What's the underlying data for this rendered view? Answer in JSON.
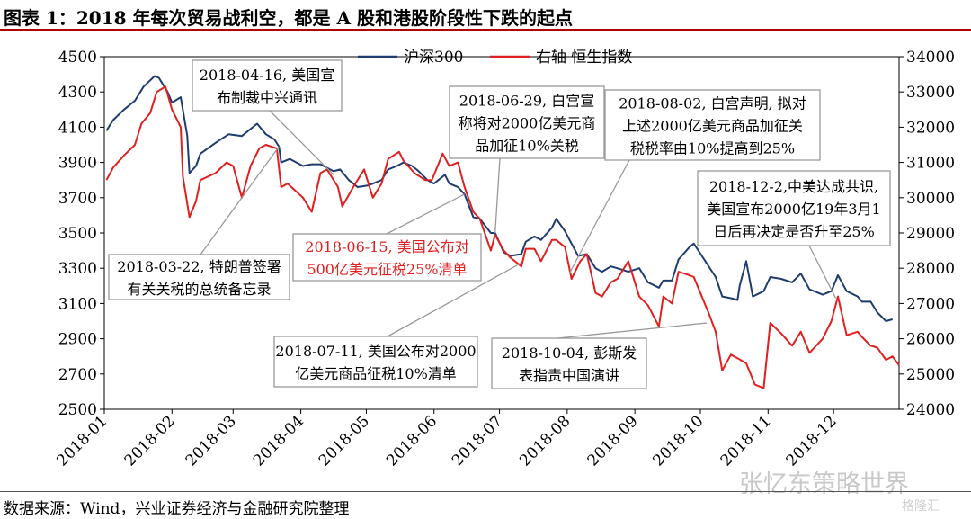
{
  "title": "图表 1：2018 年每次贸易战利空，都是 A 股和港股阶段性下跌的起点",
  "source": "数据来源：Wind，兴业证券经济与金融研究院整理",
  "watermark": "张忆东策略世界",
  "watermark2": "格隆汇",
  "colors": {
    "csi300": "#1f3c6e",
    "hsi": "#e02020",
    "title_rule": "#b00000",
    "callout_border": "#999999"
  },
  "chart_data": {
    "type": "line",
    "x_ticks": [
      "2018-01",
      "2018-02",
      "2018-03",
      "2018-04",
      "2018-05",
      "2018-06",
      "2018-07",
      "2018-08",
      "2018-09",
      "2018-10",
      "2018-11",
      "2018-12"
    ],
    "y_left": {
      "ticks": [
        "4500",
        "4300",
        "4100",
        "3900",
        "3700",
        "3500",
        "3300",
        "3100",
        "2900",
        "2700",
        "2500"
      ],
      "range": [
        2500,
        4500
      ]
    },
    "y_right": {
      "ticks": [
        "34000",
        "33000",
        "32000",
        "31000",
        "30000",
        "29000",
        "28000",
        "27000",
        "26000",
        "25000",
        "24000"
      ],
      "range": [
        24000,
        34000
      ]
    },
    "legend": [
      {
        "name": "沪深300",
        "series": "csi300"
      },
      {
        "name": "右轴 恒生指数",
        "series": "hsi"
      }
    ],
    "series": [
      {
        "name": "沪深300",
        "axis": "left",
        "color": "#1f3c6e",
        "points": [
          [
            "2018-01-02",
            4080
          ],
          [
            "2018-01-05",
            4140
          ],
          [
            "2018-01-10",
            4200
          ],
          [
            "2018-01-15",
            4250
          ],
          [
            "2018-01-19",
            4330
          ],
          [
            "2018-01-24",
            4390
          ],
          [
            "2018-01-26",
            4380
          ],
          [
            "2018-01-30",
            4300
          ],
          [
            "2018-02-01",
            4240
          ],
          [
            "2018-02-05",
            4270
          ],
          [
            "2018-02-08",
            4050
          ],
          [
            "2018-02-09",
            3840
          ],
          [
            "2018-02-12",
            3880
          ],
          [
            "2018-02-14",
            3950
          ],
          [
            "2018-02-22",
            4020
          ],
          [
            "2018-02-27",
            4060
          ],
          [
            "2018-03-05",
            4050
          ],
          [
            "2018-03-12",
            4120
          ],
          [
            "2018-03-16",
            4060
          ],
          [
            "2018-03-20",
            4030
          ],
          [
            "2018-03-22",
            3990
          ],
          [
            "2018-03-23",
            3900
          ],
          [
            "2018-03-27",
            3920
          ],
          [
            "2018-04-02",
            3880
          ],
          [
            "2018-04-06",
            3890
          ],
          [
            "2018-04-10",
            3890
          ],
          [
            "2018-04-16",
            3850
          ],
          [
            "2018-04-19",
            3860
          ],
          [
            "2018-04-23",
            3800
          ],
          [
            "2018-04-27",
            3760
          ],
          [
            "2018-05-02",
            3770
          ],
          [
            "2018-05-08",
            3800
          ],
          [
            "2018-05-11",
            3860
          ],
          [
            "2018-05-15",
            3880
          ],
          [
            "2018-05-18",
            3900
          ],
          [
            "2018-05-22",
            3880
          ],
          [
            "2018-05-25",
            3850
          ],
          [
            "2018-05-29",
            3800
          ],
          [
            "2018-06-01",
            3780
          ],
          [
            "2018-06-06",
            3830
          ],
          [
            "2018-06-08",
            3780
          ],
          [
            "2018-06-12",
            3760
          ],
          [
            "2018-06-15",
            3720
          ],
          [
            "2018-06-19",
            3590
          ],
          [
            "2018-06-22",
            3580
          ],
          [
            "2018-06-27",
            3500
          ],
          [
            "2018-06-29",
            3500
          ],
          [
            "2018-07-03",
            3390
          ],
          [
            "2018-07-06",
            3370
          ],
          [
            "2018-07-11",
            3380
          ],
          [
            "2018-07-13",
            3450
          ],
          [
            "2018-07-17",
            3480
          ],
          [
            "2018-07-20",
            3460
          ],
          [
            "2018-07-25",
            3530
          ],
          [
            "2018-07-27",
            3580
          ],
          [
            "2018-07-31",
            3510
          ],
          [
            "2018-08-03",
            3440
          ],
          [
            "2018-08-06",
            3370
          ],
          [
            "2018-08-10",
            3380
          ],
          [
            "2018-08-14",
            3300
          ],
          [
            "2018-08-17",
            3280
          ],
          [
            "2018-08-21",
            3310
          ],
          [
            "2018-08-24",
            3300
          ],
          [
            "2018-08-29",
            3280
          ],
          [
            "2018-09-03",
            3300
          ],
          [
            "2018-09-07",
            3220
          ],
          [
            "2018-09-12",
            3190
          ],
          [
            "2018-09-14",
            3230
          ],
          [
            "2018-09-18",
            3230
          ],
          [
            "2018-09-21",
            3350
          ],
          [
            "2018-09-26",
            3420
          ],
          [
            "2018-09-28",
            3440
          ],
          [
            "2018-10-08",
            3250
          ],
          [
            "2018-10-11",
            3140
          ],
          [
            "2018-10-15",
            3130
          ],
          [
            "2018-10-18",
            3120
          ],
          [
            "2018-10-19",
            3200
          ],
          [
            "2018-10-22",
            3340
          ],
          [
            "2018-10-25",
            3140
          ],
          [
            "2018-10-30",
            3170
          ],
          [
            "2018-11-02",
            3250
          ],
          [
            "2018-11-07",
            3240
          ],
          [
            "2018-11-12",
            3220
          ],
          [
            "2018-11-16",
            3270
          ],
          [
            "2018-11-20",
            3180
          ],
          [
            "2018-11-26",
            3150
          ],
          [
            "2018-11-30",
            3170
          ],
          [
            "2018-12-03",
            3260
          ],
          [
            "2018-12-07",
            3170
          ],
          [
            "2018-12-12",
            3140
          ],
          [
            "2018-12-14",
            3110
          ],
          [
            "2018-12-18",
            3110
          ],
          [
            "2018-12-21",
            3050
          ],
          [
            "2018-12-25",
            3000
          ],
          [
            "2018-12-28",
            3010
          ]
        ]
      },
      {
        "name": "右轴 恒生指数",
        "axis": "right",
        "color": "#e02020",
        "points": [
          [
            "2018-01-02",
            30500
          ],
          [
            "2018-01-05",
            30850
          ],
          [
            "2018-01-10",
            31200
          ],
          [
            "2018-01-15",
            31500
          ],
          [
            "2018-01-18",
            32100
          ],
          [
            "2018-01-22",
            32400
          ],
          [
            "2018-01-25",
            33000
          ],
          [
            "2018-01-29",
            33150
          ],
          [
            "2018-02-01",
            32500
          ],
          [
            "2018-02-05",
            32000
          ],
          [
            "2018-02-06",
            30600
          ],
          [
            "2018-02-09",
            29450
          ],
          [
            "2018-02-12",
            29900
          ],
          [
            "2018-02-14",
            30500
          ],
          [
            "2018-02-21",
            30700
          ],
          [
            "2018-02-26",
            31000
          ],
          [
            "2018-03-01",
            30900
          ],
          [
            "2018-03-05",
            30000
          ],
          [
            "2018-03-09",
            30900
          ],
          [
            "2018-03-13",
            31400
          ],
          [
            "2018-03-16",
            31500
          ],
          [
            "2018-03-21",
            31400
          ],
          [
            "2018-03-23",
            30300
          ],
          [
            "2018-03-26",
            30400
          ],
          [
            "2018-04-02",
            30000
          ],
          [
            "2018-04-06",
            29600
          ],
          [
            "2018-04-10",
            30700
          ],
          [
            "2018-04-13",
            30800
          ],
          [
            "2018-04-18",
            30300
          ],
          [
            "2018-04-20",
            29750
          ],
          [
            "2018-04-25",
            30300
          ],
          [
            "2018-04-30",
            30800
          ],
          [
            "2018-05-04",
            30000
          ],
          [
            "2018-05-08",
            30400
          ],
          [
            "2018-05-11",
            31100
          ],
          [
            "2018-05-16",
            31300
          ],
          [
            "2018-05-18",
            31050
          ],
          [
            "2018-05-23",
            30700
          ],
          [
            "2018-05-28",
            30500
          ],
          [
            "2018-05-31",
            30500
          ],
          [
            "2018-06-05",
            31250
          ],
          [
            "2018-06-08",
            30900
          ],
          [
            "2018-06-12",
            31000
          ],
          [
            "2018-06-15",
            30300
          ],
          [
            "2018-06-19",
            29600
          ],
          [
            "2018-06-22",
            29400
          ],
          [
            "2018-06-27",
            28500
          ],
          [
            "2018-06-29",
            28950
          ],
          [
            "2018-07-03",
            28500
          ],
          [
            "2018-07-06",
            28300
          ],
          [
            "2018-07-11",
            28050
          ],
          [
            "2018-07-13",
            28550
          ],
          [
            "2018-07-17",
            28550
          ],
          [
            "2018-07-20",
            28200
          ],
          [
            "2018-07-25",
            28800
          ],
          [
            "2018-07-27",
            28800
          ],
          [
            "2018-07-31",
            28600
          ],
          [
            "2018-08-03",
            27700
          ],
          [
            "2018-08-07",
            28200
          ],
          [
            "2018-08-10",
            28400
          ],
          [
            "2018-08-14",
            27300
          ],
          [
            "2018-08-17",
            27200
          ],
          [
            "2018-08-21",
            27600
          ],
          [
            "2018-08-24",
            27700
          ],
          [
            "2018-08-29",
            28200
          ],
          [
            "2018-09-03",
            27200
          ],
          [
            "2018-09-07",
            26950
          ],
          [
            "2018-09-12",
            26350
          ],
          [
            "2018-09-14",
            27200
          ],
          [
            "2018-09-18",
            27000
          ],
          [
            "2018-09-21",
            27900
          ],
          [
            "2018-09-26",
            27800
          ],
          [
            "2018-09-28",
            27750
          ],
          [
            "2018-10-05",
            26700
          ],
          [
            "2018-10-08",
            26200
          ],
          [
            "2018-10-11",
            25100
          ],
          [
            "2018-10-15",
            25550
          ],
          [
            "2018-10-18",
            25450
          ],
          [
            "2018-10-22",
            25300
          ],
          [
            "2018-10-26",
            24700
          ],
          [
            "2018-10-30",
            24600
          ],
          [
            "2018-11-02",
            26450
          ],
          [
            "2018-11-07",
            26150
          ],
          [
            "2018-11-12",
            25800
          ],
          [
            "2018-11-16",
            26200
          ],
          [
            "2018-11-20",
            25600
          ],
          [
            "2018-11-26",
            26000
          ],
          [
            "2018-11-30",
            26500
          ],
          [
            "2018-12-03",
            27200
          ],
          [
            "2018-12-07",
            26100
          ],
          [
            "2018-12-12",
            26200
          ],
          [
            "2018-12-14",
            26050
          ],
          [
            "2018-12-18",
            25800
          ],
          [
            "2018-12-21",
            25750
          ],
          [
            "2018-12-25",
            25400
          ],
          [
            "2018-12-28",
            25500
          ],
          [
            "2018-12-31",
            25250
          ]
        ]
      }
    ],
    "annotations": [
      {
        "id": "a0322",
        "lines": [
          "2018-03-22, 特朗普签署",
          "有关关税的总统备忘录"
        ],
        "color": "#000000",
        "anchor": [
          "2018-03-22",
          3990
        ]
      },
      {
        "id": "a0416",
        "lines": [
          "2018-04-16, 美国宣",
          "布制裁中兴通讯"
        ],
        "color": "#000000",
        "anchor": [
          "2018-04-16",
          3830
        ]
      },
      {
        "id": "a0615",
        "lines": [
          "2018-06-15, 美国公布对",
          "500亿美元征税25%清单"
        ],
        "color": "#e02020",
        "anchor": [
          "2018-06-15",
          3720
        ]
      },
      {
        "id": "a0629",
        "lines": [
          "2018-06-29, 白宫宣",
          "称将对2000亿美元商",
          "品加征10%关税"
        ],
        "color": "#000000",
        "anchor": [
          "2018-06-29",
          3500
        ]
      },
      {
        "id": "a0711",
        "lines": [
          "2018-07-11, 美国公布对2000",
          "亿美元商品征税10%清单"
        ],
        "color": "#000000",
        "anchor": [
          "2018-07-11",
          3330
        ]
      },
      {
        "id": "a0802",
        "lines": [
          "2018-08-02, 白宫声明, 拟对",
          "上述2000亿美元商品加征关",
          "税税率由10%提高到25%"
        ],
        "color": "#000000",
        "anchor": [
          "2018-08-02",
          3270
        ]
      },
      {
        "id": "a1004",
        "lines": [
          "2018-10-04, 彭斯发",
          "表指责中国演讲"
        ],
        "color": "#000000",
        "anchor": [
          "2018-10-04",
          2990
        ]
      },
      {
        "id": "a1202",
        "lines": [
          "2018-12-2,中美达成共识,",
          "美国宣布2000亿19年3月1",
          "日后再决定是否升至25%"
        ],
        "color": "#000000",
        "anchor": [
          "2018-12-02",
          3130
        ]
      }
    ]
  }
}
